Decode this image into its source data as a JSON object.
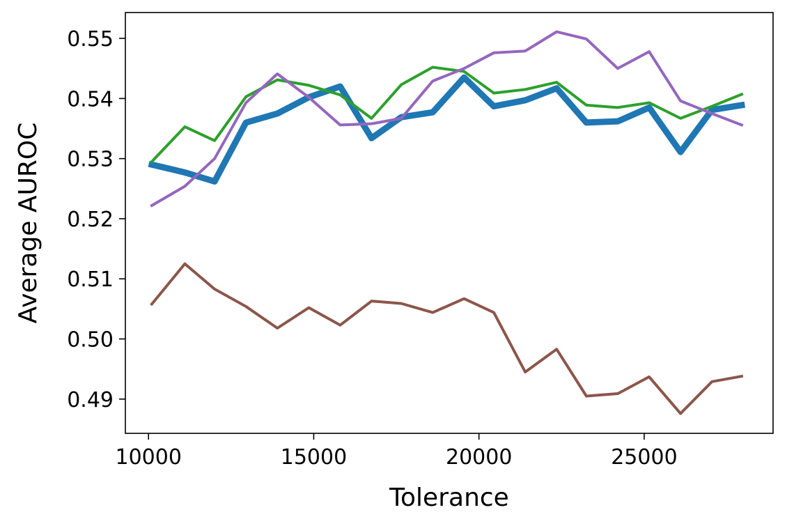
{
  "chart_data": {
    "type": "line",
    "xlabel": "Tolerance",
    "ylabel": "Average AUROC",
    "xlim": [
      9300,
      28900
    ],
    "ylim": [
      0.4843,
      0.5543
    ],
    "xticks": [
      10000,
      15000,
      20000,
      25000
    ],
    "xtick_labels": [
      "10000",
      "15000",
      "20000",
      "25000"
    ],
    "yticks": [
      0.49,
      0.5,
      0.51,
      0.52,
      0.53,
      0.54,
      0.55
    ],
    "ytick_labels": [
      "0.49",
      "0.50",
      "0.51",
      "0.52",
      "0.53",
      "0.54",
      "0.55"
    ],
    "grid": false,
    "x": [
      10100,
      11100,
      12000,
      12950,
      13900,
      14850,
      15800,
      16750,
      17650,
      18600,
      19550,
      20450,
      21400,
      22350,
      23250,
      24200,
      25150,
      26100,
      27050,
      27950
    ],
    "series": [
      {
        "color": "#1f77b4",
        "width": 9,
        "values": [
          0.529,
          0.5277,
          0.5262,
          0.536,
          0.5375,
          0.5402,
          0.542,
          0.5334,
          0.5369,
          0.5377,
          0.5435,
          0.5387,
          0.5397,
          0.5417,
          0.536,
          0.5362,
          0.5385,
          0.5311,
          0.5381,
          0.5389
        ]
      },
      {
        "color": "#2ca02c",
        "width": 4,
        "values": [
          0.5295,
          0.5353,
          0.533,
          0.5403,
          0.5431,
          0.5422,
          0.5406,
          0.5367,
          0.5423,
          0.5452,
          0.5445,
          0.5409,
          0.5415,
          0.5427,
          0.5389,
          0.5385,
          0.5393,
          0.5367,
          0.5387,
          0.5407
        ]
      },
      {
        "color": "#9467bd",
        "width": 4,
        "values": [
          0.5222,
          0.5254,
          0.53,
          0.5393,
          0.5441,
          0.5402,
          0.5356,
          0.5358,
          0.5367,
          0.5429,
          0.545,
          0.5476,
          0.5479,
          0.5511,
          0.5499,
          0.545,
          0.5478,
          0.5396,
          0.5375,
          0.5356
        ]
      },
      {
        "color": "#8c564b",
        "width": 4,
        "values": [
          0.5058,
          0.5125,
          0.5083,
          0.5054,
          0.5018,
          0.5052,
          0.5023,
          0.5063,
          0.5059,
          0.5044,
          0.5067,
          0.5044,
          0.4945,
          0.4983,
          0.4905,
          0.4909,
          0.4937,
          0.4876,
          0.4929,
          0.4938
        ]
      }
    ]
  }
}
